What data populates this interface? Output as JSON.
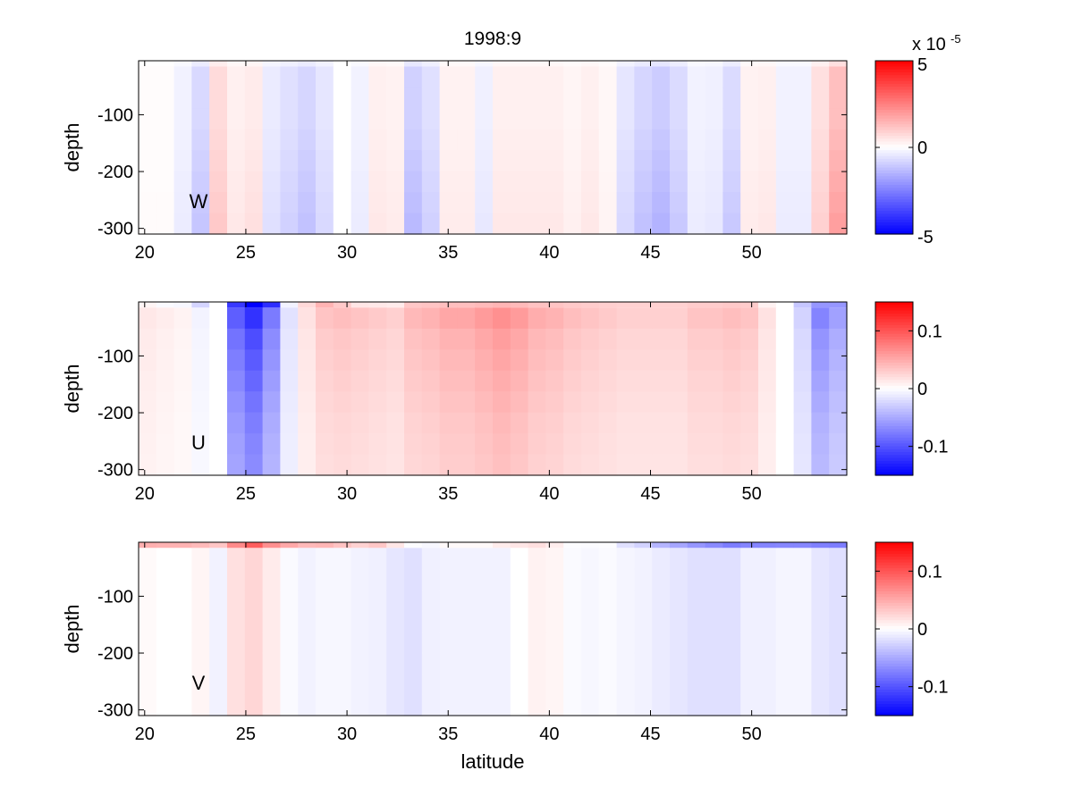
{
  "chart_data": {
    "type": "heatmap",
    "title": "1998:9",
    "xlabel": "latitude",
    "xlim": [
      19.7,
      54.7
    ],
    "xticks": [
      20,
      25,
      30,
      35,
      40,
      45,
      50
    ],
    "x_tick_labels": [
      "20",
      "25",
      "30",
      "35",
      "40",
      "45",
      "50"
    ],
    "colors": {
      "negative": "#0000ff",
      "neutral": "#ffffff",
      "positive": "#ff0000"
    },
    "panels": [
      {
        "name": "W",
        "label": "W",
        "ylabel": "depth",
        "ylim": [
          -310,
          -5
        ],
        "yticks": [
          -100,
          -200,
          -300
        ],
        "y_tick_labels": [
          "-100",
          "-200",
          "-300"
        ],
        "colorbar": {
          "clim": [
            -5e-05,
            5e-05
          ],
          "ticks": [
            5,
            0,
            -5
          ],
          "tick_labels": [
            "5",
            "0",
            "-5"
          ],
          "multiplier_base": "x 10",
          "multiplier_exp": "-5"
        },
        "profile": [
          0.01,
          0.01,
          -0.05,
          -0.15,
          0.14,
          0.06,
          0.08,
          -0.08,
          -0.12,
          -0.16,
          -0.1,
          0.0,
          -0.05,
          0.06,
          0.05,
          -0.18,
          -0.12,
          0.05,
          0.05,
          -0.06,
          0.06,
          0.06,
          0.06,
          0.06,
          0.04,
          0.06,
          0.03,
          -0.1,
          -0.16,
          -0.2,
          -0.14,
          -0.05,
          -0.06,
          -0.14,
          0.05,
          0.06,
          -0.05,
          -0.05,
          0.12,
          0.25
        ],
        "depth_mod": [
          1.0,
          1.0,
          1.0,
          1.0,
          1.1,
          1.2,
          1.3,
          1.4,
          1.5
        ],
        "surface": [
          0.0,
          0.0,
          0.0,
          0.0,
          0.0,
          0.0,
          0.0,
          0.0,
          0.0,
          0.0,
          0.0,
          0.0,
          0.0,
          0.0,
          0.0,
          0.0,
          0.0,
          0.0,
          0.0,
          0.0,
          0.0,
          0.0,
          0.0,
          0.0,
          0.0,
          0.0,
          0.0,
          0.0,
          0.0,
          0.0,
          0.0,
          0.0,
          0.0,
          0.0,
          0.0,
          0.0,
          0.0,
          0.0,
          0.0,
          0.0
        ]
      },
      {
        "name": "U",
        "label": "U",
        "ylabel": "depth",
        "ylim": [
          -310,
          -5
        ],
        "yticks": [
          -100,
          -200,
          -300
        ],
        "y_tick_labels": [
          "-100",
          "-200",
          "-300"
        ],
        "colorbar": {
          "clim": [
            -0.15,
            0.15
          ],
          "ticks": [
            0.1,
            0,
            -0.1
          ],
          "tick_labels": [
            "0.1",
            "0",
            "-0.1"
          ]
        },
        "profile": [
          0.08,
          0.06,
          0.04,
          -0.04,
          0.0,
          -0.55,
          -0.7,
          -0.45,
          -0.1,
          0.1,
          0.2,
          0.22,
          0.2,
          0.18,
          0.16,
          0.24,
          0.26,
          0.3,
          0.3,
          0.34,
          0.38,
          0.34,
          0.28,
          0.26,
          0.22,
          0.2,
          0.18,
          0.16,
          0.16,
          0.16,
          0.16,
          0.2,
          0.2,
          0.22,
          0.2,
          0.1,
          0.0,
          -0.15,
          -0.42,
          -0.32
        ],
        "depth_mod": [
          1.3,
          1.15,
          1.0,
          0.92,
          0.85,
          0.78,
          0.72,
          0.68,
          0.65
        ],
        "surface": [
          0.0,
          -0.05,
          -0.05,
          -0.15,
          0.0,
          -0.5,
          -0.8,
          -0.6,
          0.0,
          0.1,
          0.2,
          0.1,
          0.0,
          0.0,
          0.0,
          0.1,
          0.1,
          0.1,
          0.1,
          0.1,
          0.1,
          0.1,
          0.1,
          0.1,
          0.1,
          0.1,
          0.1,
          0.1,
          0.1,
          0.1,
          0.1,
          0.1,
          0.1,
          0.1,
          0.1,
          0.0,
          0.0,
          -0.15,
          -0.2,
          -0.25
        ]
      },
      {
        "name": "V",
        "label": "V",
        "ylabel": "depth",
        "ylim": [
          -310,
          -5
        ],
        "yticks": [
          -100,
          -200,
          -300
        ],
        "y_tick_labels": [
          "-100",
          "-200",
          "-300"
        ],
        "colorbar": {
          "clim": [
            -0.15,
            0.15
          ],
          "ticks": [
            0.1,
            0,
            -0.1
          ],
          "tick_labels": [
            "0.1",
            "0",
            "-0.1"
          ]
        },
        "profile": [
          0.02,
          0.0,
          0.0,
          0.04,
          -0.05,
          0.12,
          0.16,
          0.08,
          -0.02,
          -0.05,
          -0.03,
          -0.03,
          -0.05,
          -0.06,
          -0.1,
          -0.12,
          -0.06,
          -0.05,
          -0.05,
          -0.05,
          -0.05,
          0.0,
          0.05,
          0.04,
          -0.02,
          -0.03,
          -0.02,
          -0.04,
          -0.05,
          -0.08,
          -0.1,
          -0.12,
          -0.12,
          -0.12,
          -0.06,
          -0.06,
          -0.04,
          -0.04,
          -0.1,
          -0.12
        ],
        "depth_mod": [
          1.0,
          1.0,
          1.0,
          1.0,
          1.0,
          1.0,
          1.0,
          1.0,
          1.0
        ],
        "surface": [
          0.3,
          0.3,
          0.3,
          0.25,
          0.25,
          0.4,
          0.55,
          0.4,
          0.35,
          0.3,
          0.3,
          0.25,
          0.2,
          0.25,
          0.15,
          0.05,
          0.0,
          0.05,
          0.05,
          0.05,
          0.1,
          0.1,
          0.1,
          0.05,
          0.0,
          0.0,
          0.0,
          -0.1,
          -0.15,
          -0.25,
          -0.3,
          -0.35,
          -0.4,
          -0.45,
          -0.45,
          -0.45,
          -0.45,
          -0.45,
          -0.45,
          -0.45
        ]
      }
    ]
  }
}
